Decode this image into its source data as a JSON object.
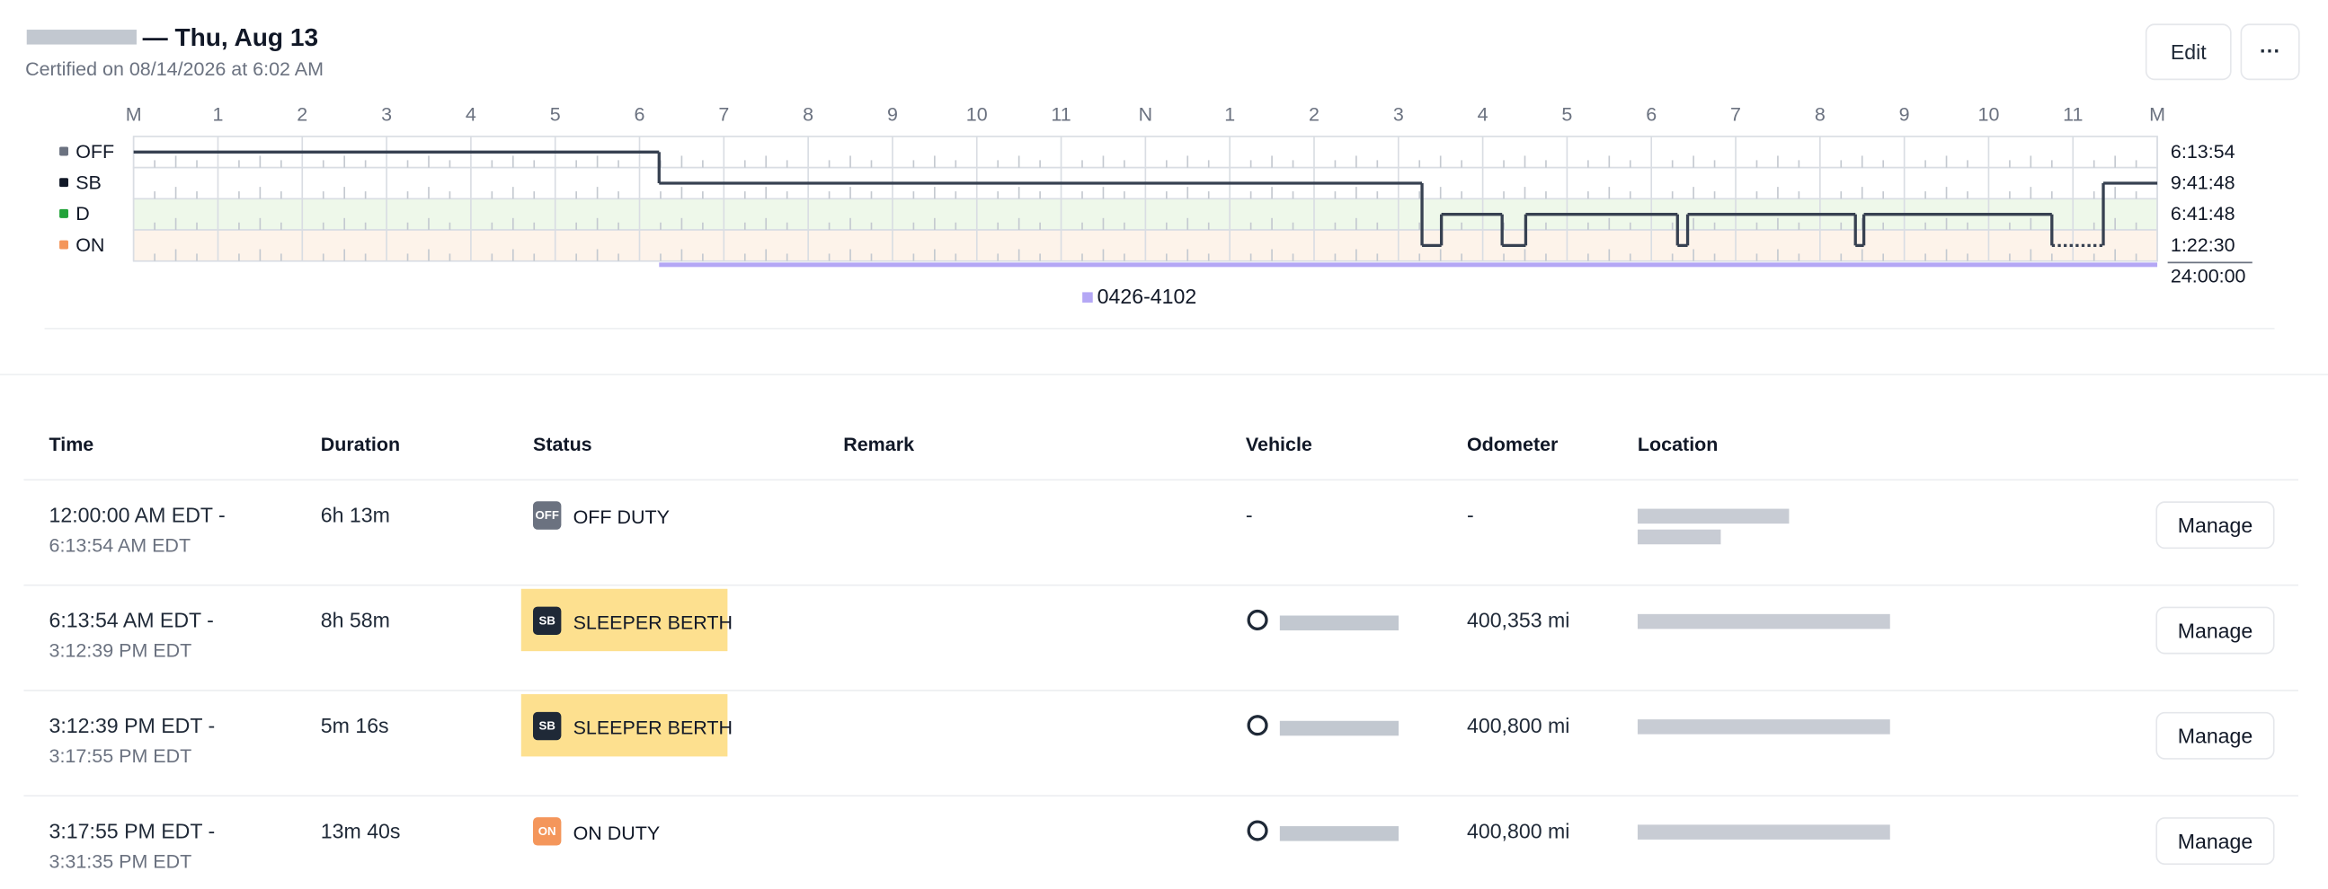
{
  "header": {
    "title": "— Thu, Aug 13",
    "subtitle": "Certified on 08/14/2026 at 6:02 AM",
    "edit": "Edit",
    "more": "···"
  },
  "graph": {
    "hour_labels": [
      "M",
      "1",
      "2",
      "3",
      "4",
      "5",
      "6",
      "7",
      "8",
      "9",
      "10",
      "11",
      "N",
      "1",
      "2",
      "3",
      "4",
      "5",
      "6",
      "7",
      "8",
      "9",
      "10",
      "11",
      "M"
    ],
    "xlim": [
      0,
      24
    ],
    "statuses": [
      {
        "name": "OFF",
        "color": "#6b7280",
        "total": "6:13:54"
      },
      {
        "name": "SB",
        "color": "#111827",
        "total": "9:41:48"
      },
      {
        "name": "D",
        "color": "#22a33a",
        "total": "6:41:48"
      },
      {
        "name": "ON",
        "color": "#f4965b",
        "total": "1:22:30"
      }
    ],
    "grand_total": "24:00:00",
    "segments": [
      {
        "status": 0,
        "start": 0,
        "end": 6.232
      },
      {
        "status": 1,
        "start": 6.232,
        "end": 15.28
      },
      {
        "status": 3,
        "start": 15.28,
        "end": 15.51
      },
      {
        "status": 2,
        "start": 15.51,
        "end": 16.23
      },
      {
        "status": 3,
        "start": 16.23,
        "end": 16.51
      },
      {
        "status": 2,
        "start": 16.51,
        "end": 18.31
      },
      {
        "status": 3,
        "start": 18.31,
        "end": 18.43
      },
      {
        "status": 2,
        "start": 18.43,
        "end": 20.42
      },
      {
        "status": 3,
        "start": 20.42,
        "end": 20.52
      },
      {
        "status": 2,
        "start": 20.52,
        "end": 22.75
      },
      {
        "status": 3,
        "start": 22.75,
        "end": 23.36,
        "dotted": true
      },
      {
        "status": 1,
        "start": 23.36,
        "end": 24
      }
    ],
    "vehicle": {
      "name": "0426-4102",
      "color": "#b4a7f5",
      "start": 6.232,
      "end": 24
    }
  },
  "table": {
    "columns": [
      "Time",
      "Duration",
      "Status",
      "Remark",
      "Vehicle",
      "Odometer",
      "Location"
    ],
    "rows": [
      {
        "start": "12:00:00 AM EDT -",
        "end": "6:13:54 AM EDT",
        "duration": "6h 13m",
        "abbr": "OFF",
        "status": "OFF DUTY",
        "vehicle": "-",
        "odometer": "-",
        "button": "Manage"
      },
      {
        "start": "6:13:54 AM EDT -",
        "end": "3:12:39 PM EDT",
        "duration": "8h 58m",
        "abbr": "SB",
        "status": "SLEEPER BERTH",
        "odometer": "400,353 mi",
        "button": "Manage"
      },
      {
        "start": "3:12:39 PM EDT -",
        "end": "3:17:55 PM EDT",
        "duration": "5m 16s",
        "abbr": "SB",
        "status": "SLEEPER BERTH",
        "odometer": "400,800 mi",
        "button": "Manage"
      },
      {
        "start": "3:17:55 PM EDT -",
        "end": "3:31:35 PM EDT",
        "duration": "13m 40s",
        "abbr": "ON",
        "status": "ON DUTY",
        "odometer": "400,800 mi",
        "button": "Manage"
      }
    ]
  }
}
